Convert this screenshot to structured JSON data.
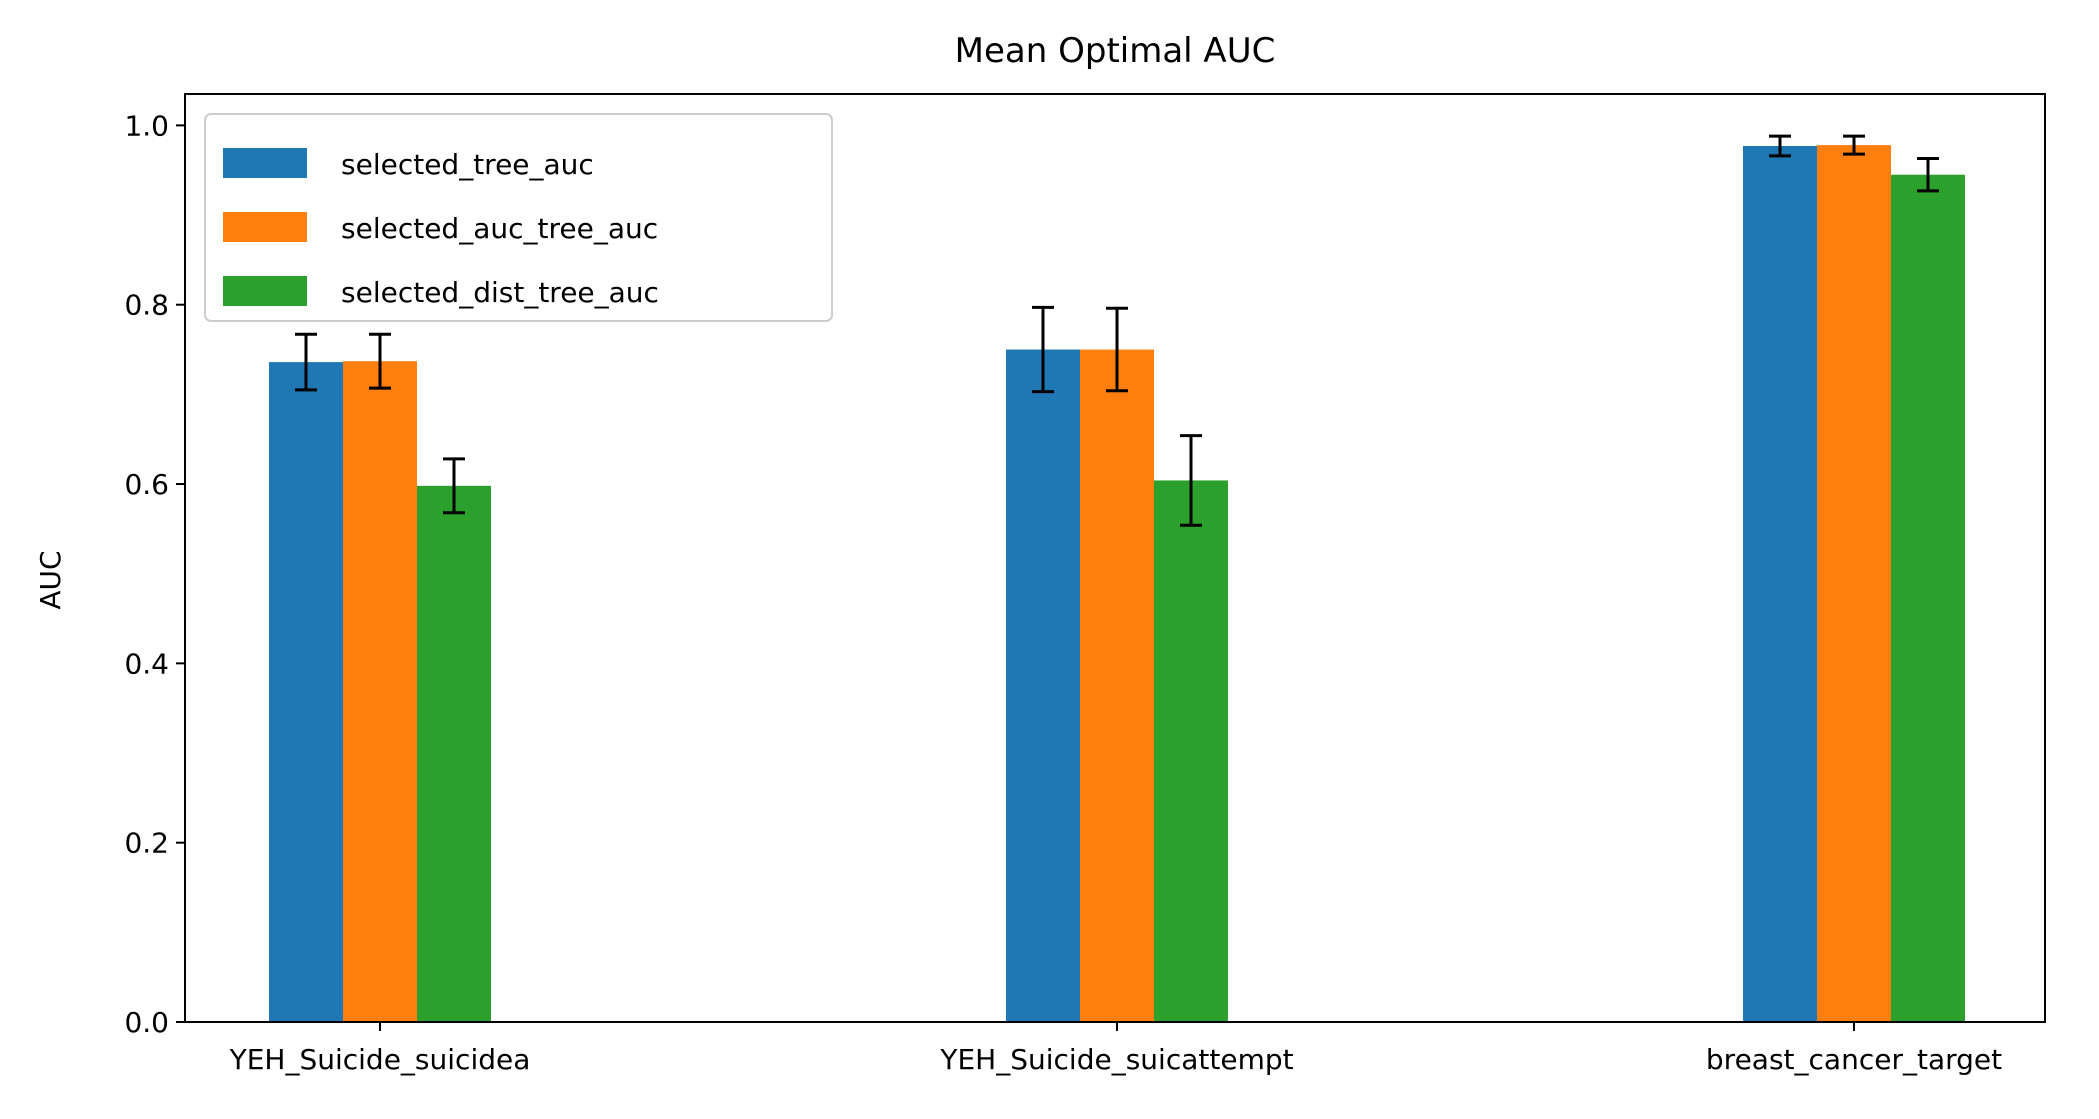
{
  "chart_data": {
    "type": "bar",
    "title": "Mean Optimal AUC",
    "xlabel": "",
    "ylabel": "AUC",
    "ylim": [
      0.0,
      1.035
    ],
    "yticks": [
      "0.0",
      "0.2",
      "0.4",
      "0.6",
      "0.8",
      "1.0"
    ],
    "categories": [
      "YEH_Suicide_suicidea",
      "YEH_Suicide_suicattempt",
      "breast_cancer_target"
    ],
    "series": [
      {
        "name": "selected_tree_auc",
        "color": "#1f77b4",
        "values": [
          0.736,
          0.75,
          0.977
        ],
        "errors": [
          0.031,
          0.047,
          0.011
        ]
      },
      {
        "name": "selected_auc_tree_auc",
        "color": "#ff7f0e",
        "values": [
          0.737,
          0.75,
          0.978
        ],
        "errors": [
          0.03,
          0.046,
          0.01
        ]
      },
      {
        "name": "selected_dist_tree_auc",
        "color": "#2ca02c",
        "values": [
          0.598,
          0.604,
          0.945
        ],
        "errors": [
          0.03,
          0.05,
          0.018
        ]
      }
    ],
    "grid": false,
    "legend_position": "upper-left"
  }
}
